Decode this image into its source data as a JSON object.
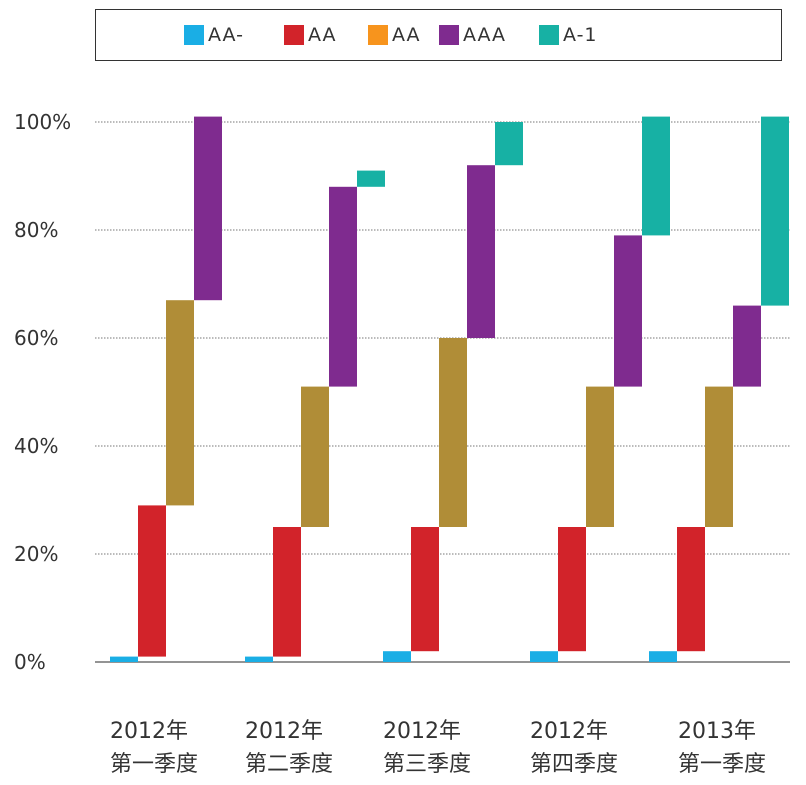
{
  "chart_data": {
    "type": "bar",
    "subtype": "waterfall-stacked",
    "title": "",
    "xlabel": "",
    "ylabel": "",
    "ylim": [
      0,
      100
    ],
    "yticks": [
      "0%",
      "20%",
      "40%",
      "60%",
      "80%",
      "100%"
    ],
    "grid": true,
    "legend_position": "top",
    "categories": [
      [
        "2012年",
        "第一季度"
      ],
      [
        "2012年",
        "第二季度"
      ],
      [
        "2012年",
        "第三季度"
      ],
      [
        "2012年",
        "第四季度"
      ],
      [
        "2013年",
        "第一季度"
      ]
    ],
    "series": [
      {
        "name": "AA-",
        "color": "#1aaee5",
        "values": [
          1,
          1,
          2,
          2,
          2
        ]
      },
      {
        "name": "AA",
        "color": "#d2232a",
        "values": [
          28,
          24,
          23,
          23,
          23
        ]
      },
      {
        "name": "AA",
        "color": "#f7941d",
        "bar_color": "#b08d37",
        "values": [
          38,
          26,
          35,
          26,
          26
        ]
      },
      {
        "name": "AAA",
        "color": "#7f2b8f",
        "values": [
          34,
          37,
          32,
          28,
          15
        ]
      },
      {
        "name": "A-1",
        "color": "#17b1a4",
        "values": [
          0,
          3,
          8,
          22,
          35
        ]
      }
    ]
  }
}
